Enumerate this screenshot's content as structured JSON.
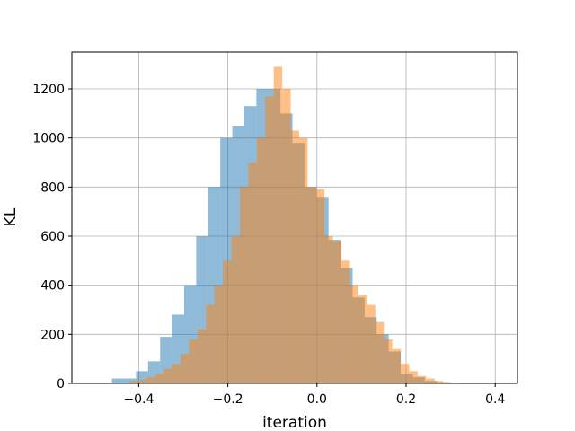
{
  "chart_data": {
    "type": "bar",
    "subtype": "histogram-overlay",
    "title": "",
    "xlabel": "iteration",
    "ylabel": "KL",
    "xlim": [
      -0.55,
      0.45
    ],
    "ylim": [
      0,
      1350
    ],
    "xticks": [
      -0.4,
      -0.2,
      0.0,
      0.2,
      0.4
    ],
    "xtick_labels": [
      "−0.4",
      "−0.2",
      "0.0",
      "0.2",
      "0.4"
    ],
    "yticks": [
      0,
      200,
      400,
      600,
      800,
      1000,
      1200
    ],
    "ytick_labels": [
      "0",
      "200",
      "400",
      "600",
      "800",
      "1000",
      "1200"
    ],
    "grid": true,
    "legend": "none",
    "series": [
      {
        "color": "#1f77b4",
        "alpha": 0.5,
        "bin_edges": [
          -0.46,
          -0.433,
          -0.406,
          -0.379,
          -0.352,
          -0.325,
          -0.298,
          -0.271,
          -0.244,
          -0.217,
          -0.19,
          -0.163,
          -0.136,
          -0.109,
          -0.082,
          -0.055,
          -0.028,
          -0.001,
          0.026,
          0.053,
          0.08,
          0.107,
          0.134,
          0.161,
          0.188,
          0.215,
          0.242,
          0.269,
          0.296,
          0.323,
          0.35
        ],
        "counts": [
          20,
          20,
          50,
          90,
          190,
          280,
          400,
          600,
          800,
          1000,
          1050,
          1130,
          1200,
          1200,
          1100,
          980,
          800,
          760,
          585,
          470,
          350,
          270,
          200,
          130,
          40,
          25,
          10,
          5,
          2,
          1
        ]
      },
      {
        "color": "#ff7f0e",
        "alpha": 0.5,
        "bin_edges": [
          -0.42,
          -0.401,
          -0.382,
          -0.363,
          -0.344,
          -0.325,
          -0.306,
          -0.287,
          -0.268,
          -0.249,
          -0.23,
          -0.211,
          -0.192,
          -0.173,
          -0.154,
          -0.135,
          -0.116,
          -0.097,
          -0.078,
          -0.059,
          -0.04,
          -0.021,
          -0.002,
          0.017,
          0.036,
          0.055,
          0.074,
          0.093,
          0.112,
          0.131,
          0.15,
          0.169,
          0.188,
          0.207,
          0.226,
          0.245,
          0.264,
          0.283,
          0.302
        ],
        "counts": [
          10,
          15,
          25,
          40,
          60,
          80,
          120,
          180,
          220,
          320,
          400,
          500,
          600,
          800,
          900,
          1000,
          1170,
          1290,
          1200,
          1030,
          1000,
          800,
          790,
          600,
          580,
          500,
          400,
          360,
          320,
          250,
          180,
          140,
          80,
          50,
          30,
          20,
          10,
          5
        ]
      }
    ]
  }
}
